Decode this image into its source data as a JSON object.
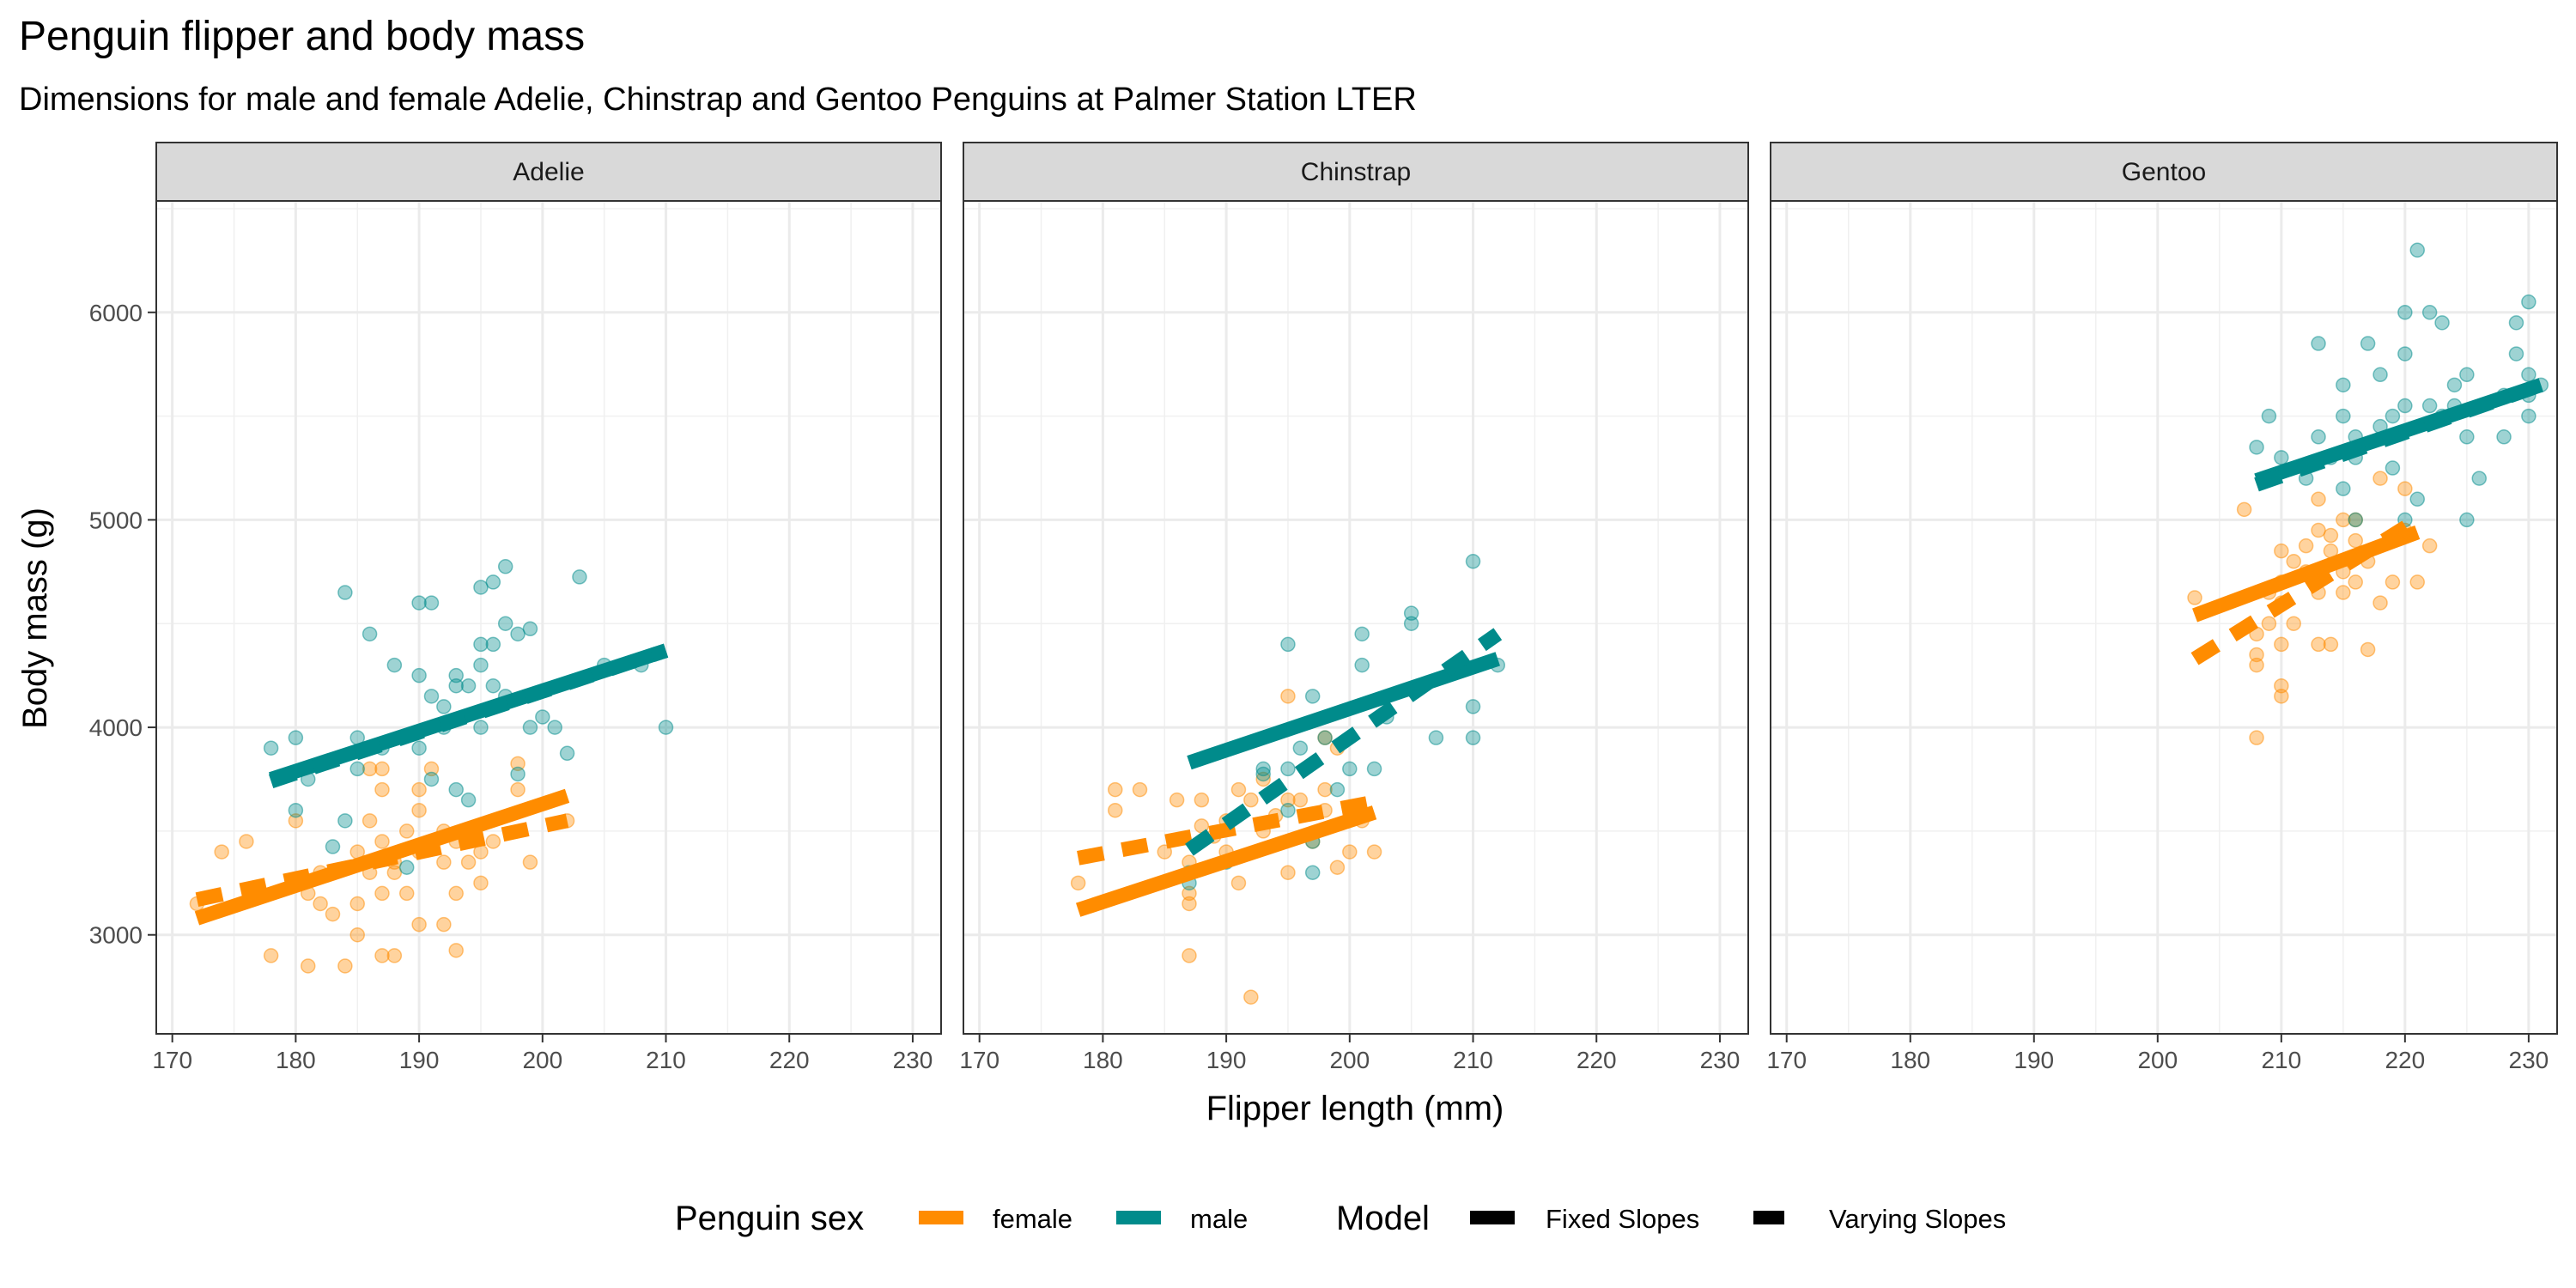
{
  "chart_data": {
    "type": "scatter",
    "title": "Penguin flipper and body mass",
    "subtitle": "Dimensions for male and female Adelie, Chinstrap and Gentoo Penguins at Palmer Station LTER",
    "xlabel": "Flipper length (mm)",
    "ylabel": "Body mass (g)",
    "xlim": [
      168.7,
      232.3
    ],
    "ylim": [
      2523,
      6537
    ],
    "x_ticks": [
      170,
      180,
      190,
      200,
      210,
      220,
      230
    ],
    "y_ticks": [
      3000,
      4000,
      5000,
      6000
    ],
    "grid": true,
    "colors": {
      "female": "#ff8c00",
      "male": "#008b8b"
    },
    "legend": {
      "position": "bottom",
      "color_title": "Penguin sex",
      "color_entries": [
        "female",
        "male"
      ],
      "linetype_title": "Model",
      "linetype_entries": [
        "Fixed Slopes",
        "Varying Slopes"
      ]
    },
    "panels": [
      {
        "name": "Adelie",
        "points": {
          "female": [
            [
              172,
              3150
            ],
            [
              174,
              3400
            ],
            [
              176,
              3450
            ],
            [
              178,
              2900
            ],
            [
              180,
              3550
            ],
            [
              181,
              3200
            ],
            [
              181,
              2850
            ],
            [
              182,
              3300
            ],
            [
              182,
              3150
            ],
            [
              183,
              3100
            ],
            [
              184,
              2850
            ],
            [
              185,
              3000
            ],
            [
              185,
              3150
            ],
            [
              185,
              3400
            ],
            [
              186,
              3300
            ],
            [
              186,
              3550
            ],
            [
              186,
              3800
            ],
            [
              187,
              2900
            ],
            [
              187,
              3200
            ],
            [
              187,
              3450
            ],
            [
              187,
              3700
            ],
            [
              187,
              3800
            ],
            [
              188,
              2900
            ],
            [
              188,
              3300
            ],
            [
              188,
              3350
            ],
            [
              189,
              3200
            ],
            [
              189,
              3500
            ],
            [
              190,
              3050
            ],
            [
              190,
              3400
            ],
            [
              190,
              3600
            ],
            [
              190,
              3700
            ],
            [
              191,
              3450
            ],
            [
              191,
              3800
            ],
            [
              192,
              3050
            ],
            [
              192,
              3350
            ],
            [
              192,
              3500
            ],
            [
              193,
              2925
            ],
            [
              193,
              3200
            ],
            [
              193,
              3450
            ],
            [
              194,
              3350
            ],
            [
              194,
              3500
            ],
            [
              195,
              3250
            ],
            [
              195,
              3400
            ],
            [
              196,
              3450
            ],
            [
              198,
              3825
            ],
            [
              198,
              3700
            ],
            [
              199,
              3350
            ],
            [
              202,
              3550
            ]
          ],
          "male": [
            [
              178,
              3900
            ],
            [
              180,
              3950
            ],
            [
              180,
              3600
            ],
            [
              181,
              3750
            ],
            [
              183,
              3425
            ],
            [
              184,
              3550
            ],
            [
              184,
              4650
            ],
            [
              185,
              3800
            ],
            [
              185,
              3950
            ],
            [
              186,
              4450
            ],
            [
              187,
              3900
            ],
            [
              188,
              4300
            ],
            [
              189,
              3325
            ],
            [
              190,
              3900
            ],
            [
              190,
              4250
            ],
            [
              190,
              4600
            ],
            [
              191,
              3750
            ],
            [
              191,
              4150
            ],
            [
              191,
              4600
            ],
            [
              192,
              4000
            ],
            [
              192,
              4100
            ],
            [
              193,
              3700
            ],
            [
              193,
              4200
            ],
            [
              193,
              4250
            ],
            [
              194,
              3650
            ],
            [
              194,
              4200
            ],
            [
              195,
              4300
            ],
            [
              195,
              4000
            ],
            [
              195,
              4400
            ],
            [
              195,
              4675
            ],
            [
              196,
              4200
            ],
            [
              196,
              4400
            ],
            [
              196,
              4700
            ],
            [
              197,
              4150
            ],
            [
              197,
              4500
            ],
            [
              197,
              4775
            ],
            [
              198,
              3775
            ],
            [
              198,
              4450
            ],
            [
              199,
              4000
            ],
            [
              199,
              4475
            ],
            [
              200,
              4050
            ],
            [
              201,
              4000
            ],
            [
              202,
              3875
            ],
            [
              203,
              4725
            ],
            [
              205,
              4300
            ],
            [
              208,
              4300
            ],
            [
              210,
              4000
            ]
          ]
        },
        "fixed_lines": {
          "female": [
            [
              172,
              3080
            ],
            [
              202,
              3670
            ]
          ],
          "male": [
            [
              178,
              3750
            ],
            [
              210,
              4370
            ]
          ]
        },
        "varying_lines": {
          "female": [
            [
              172,
              3170
            ],
            [
              202,
              3550
            ]
          ],
          "male": [
            [
              178,
              3740
            ],
            [
              210,
              4370
            ]
          ]
        }
      },
      {
        "name": "Chinstrap",
        "points": {
          "female": [
            [
              178,
              3250
            ],
            [
              181,
              3700
            ],
            [
              181,
              3600
            ],
            [
              183,
              3700
            ],
            [
              185,
              3400
            ],
            [
              186,
              3650
            ],
            [
              187,
              3150
            ],
            [
              187,
              3200
            ],
            [
              187,
              3350
            ],
            [
              187,
              2900
            ],
            [
              188,
              3650
            ],
            [
              188,
              3525
            ],
            [
              189,
              3475
            ],
            [
              190,
              3400
            ],
            [
              190,
              3550
            ],
            [
              191,
              3700
            ],
            [
              191,
              3250
            ],
            [
              192,
              2700
            ],
            [
              192,
              3650
            ],
            [
              193,
              3500
            ],
            [
              193,
              3750
            ],
            [
              194,
              3575
            ],
            [
              195,
              3300
            ],
            [
              195,
              3650
            ],
            [
              195,
              4150
            ],
            [
              196,
              3650
            ],
            [
              197,
              3450
            ],
            [
              198,
              3950
            ],
            [
              198,
              3700
            ],
            [
              199,
              3325
            ],
            [
              199,
              3900
            ],
            [
              200,
              3400
            ],
            [
              201,
              3550
            ],
            [
              202,
              3400
            ],
            [
              198,
              3600
            ]
          ],
          "male": [
            [
              187,
              3250
            ],
            [
              187,
              3300
            ],
            [
              190,
              3350
            ],
            [
              193,
              3800
            ],
            [
              193,
              3775
            ],
            [
              195,
              3600
            ],
            [
              195,
              3800
            ],
            [
              195,
              4400
            ],
            [
              196,
              3900
            ],
            [
              197,
              3300
            ],
            [
              197,
              3450
            ],
            [
              197,
              4150
            ],
            [
              198,
              3950
            ],
            [
              199,
              3700
            ],
            [
              200,
              3800
            ],
            [
              201,
              4300
            ],
            [
              201,
              4450
            ],
            [
              202,
              3800
            ],
            [
              203,
              4050
            ],
            [
              205,
              4550
            ],
            [
              205,
              4500
            ],
            [
              207,
              3950
            ],
            [
              210,
              3950
            ],
            [
              210,
              4100
            ],
            [
              210,
              4800
            ],
            [
              212,
              4300
            ]
          ]
        },
        "fixed_lines": {
          "female": [
            [
              178,
              3120
            ],
            [
              202,
              3590
            ]
          ],
          "male": [
            [
              187,
              3830
            ],
            [
              212,
              4330
            ]
          ]
        },
        "varying_lines": {
          "female": [
            [
              178,
              3370
            ],
            [
              202,
              3640
            ]
          ],
          "male": [
            [
              187,
              3410
            ],
            [
              212,
              4450
            ]
          ]
        }
      },
      {
        "name": "Gentoo",
        "points": {
          "female": [
            [
              203,
              4625
            ],
            [
              207,
              5050
            ],
            [
              208,
              3950
            ],
            [
              208,
              4300
            ],
            [
              208,
              4450
            ],
            [
              208,
              4350
            ],
            [
              209,
              4650
            ],
            [
              209,
              4500
            ],
            [
              210,
              4150
            ],
            [
              210,
              4200
            ],
            [
              210,
              4400
            ],
            [
              210,
              4600
            ],
            [
              210,
              4700
            ],
            [
              210,
              4850
            ],
            [
              211,
              4800
            ],
            [
              211,
              4500
            ],
            [
              212,
              4750
            ],
            [
              212,
              4875
            ],
            [
              213,
              4400
            ],
            [
              213,
              4650
            ],
            [
              213,
              4950
            ],
            [
              213,
              5100
            ],
            [
              214,
              4400
            ],
            [
              214,
              4850
            ],
            [
              214,
              4925
            ],
            [
              215,
              4650
            ],
            [
              215,
              5000
            ],
            [
              215,
              4750
            ],
            [
              216,
              4700
            ],
            [
              216,
              4900
            ],
            [
              216,
              5000
            ],
            [
              217,
              4375
            ],
            [
              217,
              4800
            ],
            [
              218,
              4600
            ],
            [
              218,
              5200
            ],
            [
              219,
              4700
            ],
            [
              220,
              4950
            ],
            [
              220,
              5150
            ],
            [
              221,
              4700
            ],
            [
              222,
              4875
            ]
          ],
          "male": [
            [
              208,
              5350
            ],
            [
              209,
              5500
            ],
            [
              210,
              5300
            ],
            [
              212,
              5200
            ],
            [
              213,
              5400
            ],
            [
              213,
              5850
            ],
            [
              214,
              5300
            ],
            [
              215,
              5150
            ],
            [
              215,
              5500
            ],
            [
              215,
              5650
            ],
            [
              216,
              5000
            ],
            [
              216,
              5300
            ],
            [
              216,
              5400
            ],
            [
              217,
              5850
            ],
            [
              218,
              5700
            ],
            [
              218,
              5450
            ],
            [
              219,
              5250
            ],
            [
              219,
              5500
            ],
            [
              220,
              5800
            ],
            [
              220,
              6000
            ],
            [
              220,
              5000
            ],
            [
              220,
              5550
            ],
            [
              221,
              5100
            ],
            [
              221,
              6300
            ],
            [
              222,
              6000
            ],
            [
              222,
              5550
            ],
            [
              223,
              5950
            ],
            [
              223,
              5500
            ],
            [
              224,
              5650
            ],
            [
              224,
              5550
            ],
            [
              225,
              5000
            ],
            [
              225,
              5400
            ],
            [
              225,
              5700
            ],
            [
              226,
              5200
            ],
            [
              228,
              5400
            ],
            [
              228,
              5600
            ],
            [
              229,
              5950
            ],
            [
              229,
              5800
            ],
            [
              230,
              6050
            ],
            [
              230,
              5500
            ],
            [
              230,
              5700
            ],
            [
              230,
              5600
            ],
            [
              231,
              5650
            ]
          ]
        },
        "fixed_lines": {
          "female": [
            [
              203,
              4540
            ],
            [
              221,
              4940
            ]
          ],
          "male": [
            [
              208,
              5190
            ],
            [
              231,
              5650
            ]
          ]
        },
        "varying_lines": {
          "female": [
            [
              203,
              4330
            ],
            [
              221,
              5000
            ]
          ],
          "male": [
            [
              208,
              5170
            ],
            [
              231,
              5650
            ]
          ]
        }
      }
    ]
  }
}
